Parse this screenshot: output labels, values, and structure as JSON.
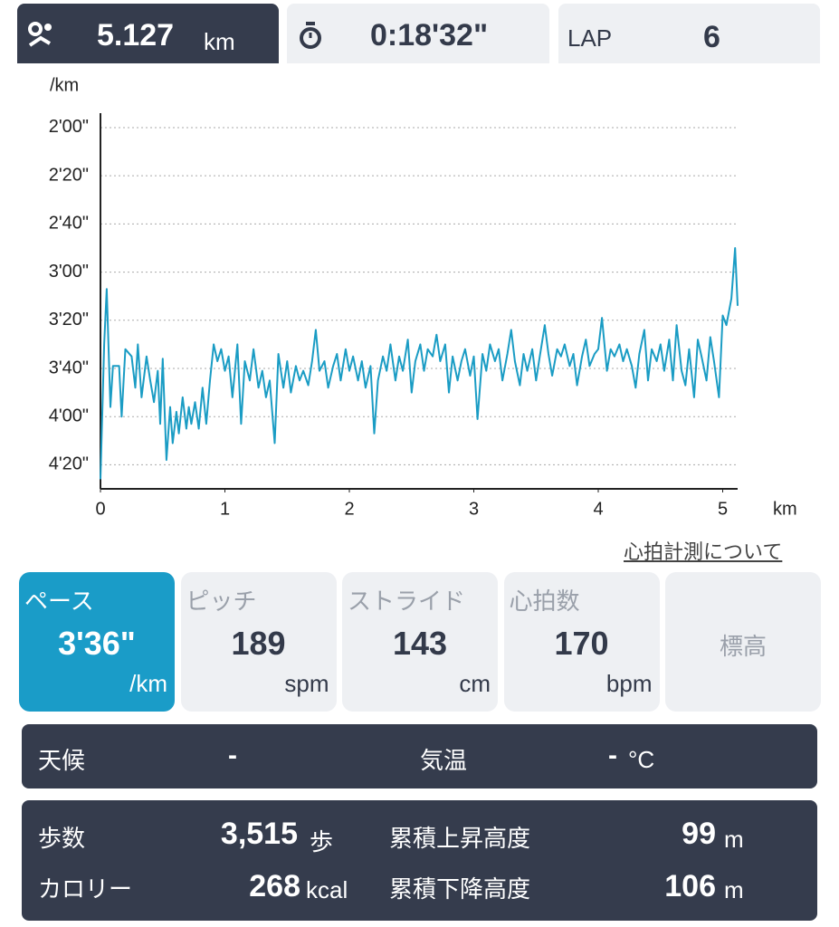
{
  "header": {
    "distance": "5.127",
    "distance_unit": "km",
    "time": "0:18'32\"",
    "lap_label": "LAP",
    "lap": "6"
  },
  "chart_data": {
    "type": "line",
    "color": "#1a9cc4",
    "x_label": "km",
    "y_label": "/km",
    "xlim": [
      0,
      5.12
    ],
    "xticks": [
      0,
      1,
      2,
      3,
      4,
      5
    ],
    "ylim": [
      114,
      270
    ],
    "y_inverted": true,
    "grid": true,
    "yticks": [
      {
        "value": 120,
        "label": "2'00\""
      },
      {
        "value": 140,
        "label": "2'20\""
      },
      {
        "value": 160,
        "label": "2'40\""
      },
      {
        "value": 180,
        "label": "3'00\""
      },
      {
        "value": 200,
        "label": "3'20\""
      },
      {
        "value": 220,
        "label": "3'40\""
      },
      {
        "value": 240,
        "label": "4'00\""
      },
      {
        "value": 260,
        "label": "4'20\""
      }
    ],
    "x": [
      0,
      0.03,
      0.05,
      0.08,
      0.1,
      0.15,
      0.17,
      0.2,
      0.25,
      0.28,
      0.3,
      0.33,
      0.37,
      0.4,
      0.43,
      0.46,
      0.48,
      0.5,
      0.53,
      0.56,
      0.58,
      0.61,
      0.63,
      0.66,
      0.69,
      0.71,
      0.73,
      0.76,
      0.79,
      0.82,
      0.85,
      0.88,
      0.91,
      0.94,
      0.97,
      1.0,
      1.03,
      1.06,
      1.1,
      1.13,
      1.16,
      1.2,
      1.23,
      1.27,
      1.3,
      1.33,
      1.36,
      1.4,
      1.43,
      1.47,
      1.5,
      1.53,
      1.57,
      1.6,
      1.63,
      1.67,
      1.7,
      1.73,
      1.76,
      1.8,
      1.83,
      1.87,
      1.9,
      1.93,
      1.97,
      2.0,
      2.03,
      2.07,
      2.1,
      2.13,
      2.17,
      2.2,
      2.23,
      2.27,
      2.3,
      2.33,
      2.37,
      2.4,
      2.43,
      2.47,
      2.5,
      2.53,
      2.57,
      2.6,
      2.63,
      2.67,
      2.7,
      2.73,
      2.77,
      2.8,
      2.83,
      2.87,
      2.9,
      2.93,
      2.97,
      3.0,
      3.03,
      3.07,
      3.1,
      3.13,
      3.17,
      3.2,
      3.23,
      3.27,
      3.3,
      3.33,
      3.37,
      3.4,
      3.43,
      3.47,
      3.5,
      3.53,
      3.57,
      3.6,
      3.63,
      3.67,
      3.7,
      3.73,
      3.77,
      3.8,
      3.83,
      3.87,
      3.9,
      3.93,
      3.97,
      4.0,
      4.03,
      4.07,
      4.1,
      4.13,
      4.17,
      4.2,
      4.23,
      4.27,
      4.3,
      4.33,
      4.37,
      4.4,
      4.43,
      4.47,
      4.5,
      4.53,
      4.57,
      4.6,
      4.63,
      4.67,
      4.7,
      4.73,
      4.77,
      4.8,
      4.83,
      4.87,
      4.9,
      4.93,
      4.97,
      5.0,
      5.03,
      5.07,
      5.1,
      5.12
    ],
    "values": [
      266,
      210,
      187,
      236,
      219,
      219,
      240,
      212,
      215,
      228,
      210,
      232,
      215,
      225,
      234,
      221,
      243,
      216,
      258,
      236,
      251,
      238,
      247,
      232,
      245,
      236,
      243,
      234,
      245,
      228,
      243,
      225,
      210,
      217,
      212,
      221,
      215,
      232,
      210,
      243,
      217,
      225,
      212,
      228,
      221,
      232,
      225,
      251,
      214,
      228,
      217,
      230,
      219,
      225,
      221,
      227,
      217,
      204,
      221,
      217,
      228,
      219,
      214,
      225,
      212,
      221,
      215,
      225,
      217,
      228,
      219,
      247,
      225,
      215,
      221,
      210,
      225,
      215,
      221,
      208,
      230,
      217,
      210,
      221,
      212,
      215,
      206,
      217,
      210,
      230,
      215,
      225,
      217,
      212,
      223,
      215,
      241,
      214,
      221,
      210,
      217,
      212,
      225,
      214,
      204,
      217,
      227,
      214,
      221,
      212,
      225,
      215,
      202,
      214,
      223,
      212,
      215,
      210,
      219,
      214,
      227,
      215,
      208,
      219,
      214,
      212,
      199,
      221,
      212,
      215,
      210,
      217,
      212,
      219,
      228,
      214,
      204,
      225,
      212,
      217,
      210,
      221,
      208,
      225,
      202,
      221,
      227,
      212,
      232,
      208,
      215,
      225,
      207,
      217,
      232,
      198,
      202,
      191,
      170,
      194
    ]
  },
  "link": "心拍計測について",
  "tiles": [
    {
      "label": "ペース",
      "value": "3'36\"",
      "unit": "/km"
    },
    {
      "label": "ピッチ",
      "value": "189",
      "unit": "spm"
    },
    {
      "label": "ストライド",
      "value": "143",
      "unit": "cm"
    },
    {
      "label": "心拍数",
      "value": "170",
      "unit": "bpm"
    },
    {
      "label": "標高"
    }
  ],
  "weather": {
    "label": "天候",
    "value": "-",
    "temp_label": "気温",
    "temp_value": "-",
    "temp_unit": "°C"
  },
  "summary": {
    "steps_label": "歩数",
    "steps": "3,515",
    "steps_unit": "歩",
    "ascent_label": "累積上昇高度",
    "ascent": "99",
    "ascent_unit": "m",
    "calories_label": "カロリー",
    "calories": "268",
    "calories_unit": "kcal",
    "descent_label": "累積下降高度",
    "descent": "106",
    "descent_unit": "m"
  }
}
